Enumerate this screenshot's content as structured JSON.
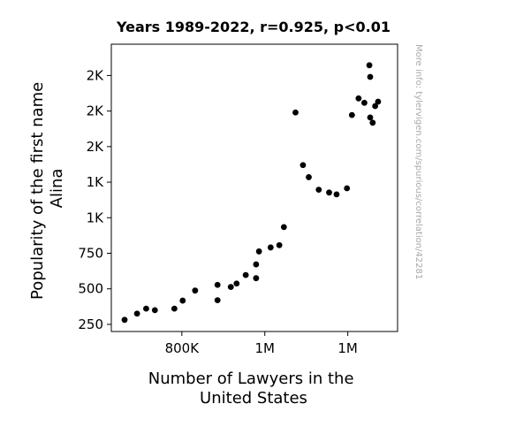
{
  "chart_data": {
    "type": "scatter",
    "title": "Years 1989-2022, r=0.925, p<0.01",
    "xlabel": [
      "Number of Lawyers in the",
      "United States"
    ],
    "ylabel": [
      "Popularity of the first name",
      "Alina"
    ],
    "side_note": "More info: tylervigen.com/spurious/correlation/42281",
    "marker_color": "#000000",
    "grid": false,
    "xlim": [
      630000,
      1320000
    ],
    "ylim": [
      200,
      2220
    ],
    "x_ticks": [
      {
        "value": 800000,
        "label": "800K"
      },
      {
        "value": 1000000,
        "label": "1M"
      },
      {
        "value": 1200000,
        "label": "1M"
      }
    ],
    "y_ticks": [
      {
        "value": 250,
        "label": "250"
      },
      {
        "value": 500,
        "label": "500"
      },
      {
        "value": 750,
        "label": "750"
      },
      {
        "value": 1000,
        "label": "1K"
      },
      {
        "value": 1250,
        "label": "1K"
      },
      {
        "value": 1500,
        "label": "2K"
      },
      {
        "value": 1750,
        "label": "2K"
      },
      {
        "value": 2000,
        "label": "2K"
      }
    ],
    "points": [
      {
        "x": 662000,
        "y": 282
      },
      {
        "x": 692000,
        "y": 326
      },
      {
        "x": 714000,
        "y": 361
      },
      {
        "x": 735000,
        "y": 350
      },
      {
        "x": 782000,
        "y": 361
      },
      {
        "x": 802000,
        "y": 417
      },
      {
        "x": 832000,
        "y": 488
      },
      {
        "x": 886000,
        "y": 528
      },
      {
        "x": 886000,
        "y": 420
      },
      {
        "x": 918000,
        "y": 513
      },
      {
        "x": 932000,
        "y": 537
      },
      {
        "x": 954000,
        "y": 597
      },
      {
        "x": 979000,
        "y": 575
      },
      {
        "x": 979000,
        "y": 672
      },
      {
        "x": 986000,
        "y": 763
      },
      {
        "x": 1014000,
        "y": 791
      },
      {
        "x": 1035000,
        "y": 807
      },
      {
        "x": 1046000,
        "y": 934
      },
      {
        "x": 1074000,
        "y": 1740
      },
      {
        "x": 1092000,
        "y": 1370
      },
      {
        "x": 1106000,
        "y": 1285
      },
      {
        "x": 1130000,
        "y": 1197
      },
      {
        "x": 1155000,
        "y": 1177
      },
      {
        "x": 1173000,
        "y": 1164
      },
      {
        "x": 1198000,
        "y": 1207
      },
      {
        "x": 1210000,
        "y": 1722
      },
      {
        "x": 1226000,
        "y": 1839
      },
      {
        "x": 1240000,
        "y": 1808
      },
      {
        "x": 1252000,
        "y": 2072
      },
      {
        "x": 1254000,
        "y": 1990
      },
      {
        "x": 1254000,
        "y": 1705
      },
      {
        "x": 1260000,
        "y": 1668
      },
      {
        "x": 1266000,
        "y": 1785
      },
      {
        "x": 1273000,
        "y": 1816
      }
    ]
  }
}
